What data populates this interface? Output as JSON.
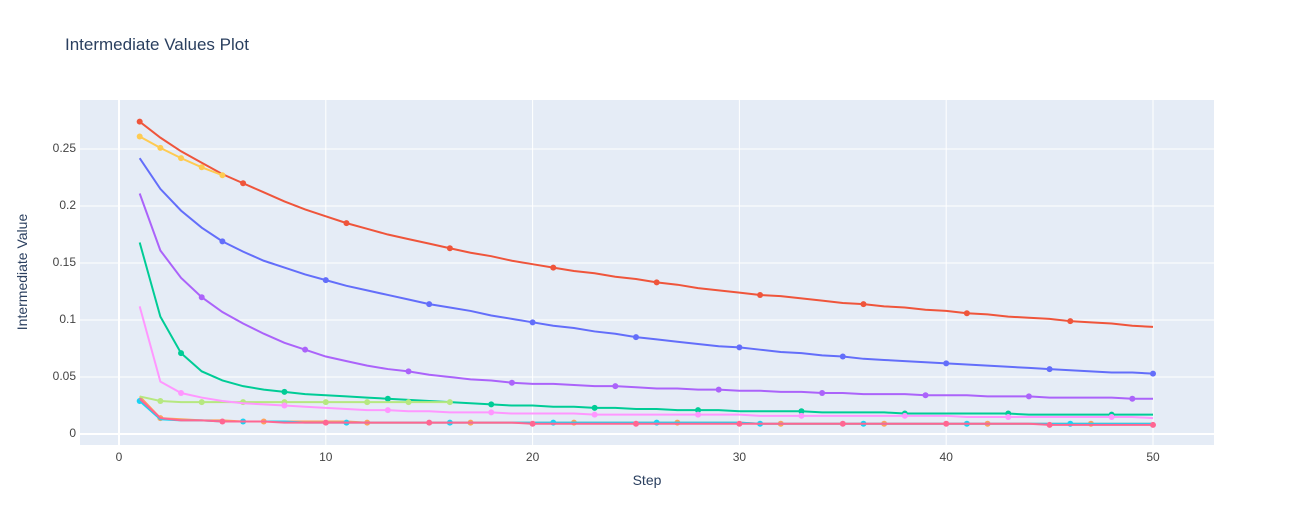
{
  "chart_data": {
    "type": "line",
    "title": "Intermediate Values Plot",
    "x_label": "Step",
    "y_label": "Intermediate Value",
    "xlim": [
      -1.886,
      52.95
    ],
    "ylim": [
      -0.0096,
      0.293
    ],
    "xticks": [
      0,
      10,
      20,
      30,
      40,
      50
    ],
    "yticks": [
      0,
      0.05,
      0.1,
      0.15,
      0.2,
      0.25
    ],
    "grid": true,
    "series": [
      {
        "color": "#EF553B",
        "x": [
          1,
          2,
          3,
          4,
          5,
          6,
          7,
          8,
          9,
          10,
          11,
          12,
          13,
          14,
          15,
          16,
          17,
          18,
          19,
          20,
          21,
          22,
          23,
          24,
          25,
          26,
          27,
          28,
          29,
          30,
          31,
          32,
          33,
          34,
          35,
          36,
          37,
          38,
          39,
          40,
          41,
          42,
          43,
          44,
          45,
          46,
          47,
          48,
          49,
          50
        ],
        "values": [
          0.274,
          0.26,
          0.248,
          0.238,
          0.228,
          0.22,
          0.212,
          0.204,
          0.197,
          0.191,
          0.185,
          0.18,
          0.175,
          0.171,
          0.167,
          0.163,
          0.159,
          0.156,
          0.152,
          0.149,
          0.146,
          0.143,
          0.141,
          0.138,
          0.136,
          0.133,
          0.131,
          0.128,
          0.126,
          0.124,
          0.122,
          0.121,
          0.119,
          0.117,
          0.115,
          0.114,
          0.112,
          0.111,
          0.109,
          0.108,
          0.106,
          0.105,
          0.103,
          0.102,
          0.101,
          0.099,
          0.098,
          0.097,
          0.095,
          0.094
        ]
      },
      {
        "color": "#636EFA",
        "x": [
          1,
          2,
          3,
          4,
          5,
          6,
          7,
          8,
          9,
          10,
          11,
          12,
          13,
          14,
          15,
          16,
          17,
          18,
          19,
          20,
          21,
          22,
          23,
          24,
          25,
          26,
          27,
          28,
          29,
          30,
          31,
          32,
          33,
          34,
          35,
          36,
          37,
          38,
          39,
          40,
          41,
          42,
          43,
          44,
          45,
          46,
          47,
          48,
          49,
          50
        ],
        "values": [
          0.242,
          0.215,
          0.196,
          0.181,
          0.169,
          0.16,
          0.152,
          0.146,
          0.14,
          0.135,
          0.13,
          0.126,
          0.122,
          0.118,
          0.114,
          0.111,
          0.108,
          0.104,
          0.101,
          0.098,
          0.095,
          0.093,
          0.09,
          0.088,
          0.085,
          0.083,
          0.081,
          0.079,
          0.077,
          0.076,
          0.074,
          0.072,
          0.071,
          0.069,
          0.068,
          0.066,
          0.065,
          0.064,
          0.063,
          0.062,
          0.061,
          0.06,
          0.059,
          0.058,
          0.057,
          0.056,
          0.055,
          0.054,
          0.054,
          0.053
        ]
      },
      {
        "color": "#AB63FA",
        "x": [
          1,
          2,
          3,
          4,
          5,
          6,
          7,
          8,
          9,
          10,
          11,
          12,
          13,
          14,
          15,
          16,
          17,
          18,
          19,
          20,
          21,
          22,
          23,
          24,
          25,
          26,
          27,
          28,
          29,
          30,
          31,
          32,
          33,
          34,
          35,
          36,
          37,
          38,
          39,
          40,
          41,
          42,
          43,
          44,
          45,
          46,
          47,
          48,
          49,
          50
        ],
        "values": [
          0.211,
          0.161,
          0.137,
          0.12,
          0.107,
          0.097,
          0.088,
          0.08,
          0.074,
          0.068,
          0.064,
          0.06,
          0.057,
          0.055,
          0.052,
          0.05,
          0.048,
          0.047,
          0.045,
          0.044,
          0.044,
          0.043,
          0.042,
          0.042,
          0.041,
          0.04,
          0.04,
          0.039,
          0.039,
          0.038,
          0.038,
          0.037,
          0.037,
          0.036,
          0.036,
          0.035,
          0.035,
          0.035,
          0.034,
          0.034,
          0.034,
          0.033,
          0.033,
          0.033,
          0.032,
          0.032,
          0.032,
          0.032,
          0.031,
          0.031
        ]
      },
      {
        "color": "#00CC96",
        "x": [
          1,
          2,
          3,
          4,
          5,
          6,
          7,
          8,
          9,
          10,
          11,
          12,
          13,
          14,
          15,
          16,
          17,
          18,
          19,
          20,
          21,
          22,
          23,
          24,
          25,
          26,
          27,
          28,
          29,
          30,
          31,
          32,
          33,
          34,
          35,
          36,
          37,
          38,
          39,
          40,
          41,
          42,
          43,
          44,
          45,
          46,
          47,
          48,
          49,
          50
        ],
        "values": [
          0.168,
          0.103,
          0.071,
          0.055,
          0.047,
          0.042,
          0.039,
          0.037,
          0.035,
          0.034,
          0.033,
          0.032,
          0.031,
          0.03,
          0.029,
          0.028,
          0.027,
          0.026,
          0.025,
          0.025,
          0.024,
          0.024,
          0.023,
          0.023,
          0.022,
          0.022,
          0.021,
          0.021,
          0.021,
          0.02,
          0.02,
          0.02,
          0.02,
          0.019,
          0.019,
          0.019,
          0.019,
          0.018,
          0.018,
          0.018,
          0.018,
          0.018,
          0.018,
          0.017,
          0.017,
          0.017,
          0.017,
          0.017,
          0.017,
          0.017
        ]
      },
      {
        "color": "#FFA15A",
        "x": [
          1,
          2,
          3,
          4,
          5,
          6,
          7,
          8,
          9,
          10,
          11,
          12,
          13,
          14,
          15,
          16,
          17,
          18,
          19,
          20,
          21,
          22,
          23,
          24,
          25,
          26,
          27,
          28,
          29,
          30,
          31,
          32,
          33,
          34,
          35,
          36,
          37,
          38,
          39,
          40,
          41,
          42,
          43,
          44,
          45,
          46,
          47,
          48,
          49,
          50
        ],
        "values": [
          0.033,
          0.014,
          0.013,
          0.012,
          0.012,
          0.011,
          0.011,
          0.011,
          0.011,
          0.011,
          0.011,
          0.01,
          0.01,
          0.01,
          0.01,
          0.01,
          0.01,
          0.01,
          0.01,
          0.01,
          0.01,
          0.01,
          0.01,
          0.01,
          0.01,
          0.01,
          0.01,
          0.01,
          0.01,
          0.01,
          0.009,
          0.009,
          0.009,
          0.009,
          0.009,
          0.009,
          0.009,
          0.009,
          0.009,
          0.009,
          0.009,
          0.009,
          0.009,
          0.009,
          0.009,
          0.009,
          0.009,
          0.009,
          0.009,
          0.009
        ]
      },
      {
        "color": "#19D3F3",
        "x": [
          1,
          2,
          3,
          4,
          5,
          6,
          7,
          8,
          9,
          10,
          11,
          12,
          13,
          14,
          15,
          16,
          17,
          18,
          19,
          20,
          21,
          22,
          23,
          24,
          25,
          26,
          27,
          28,
          29,
          30,
          31,
          32,
          33,
          34,
          35,
          36,
          37,
          38,
          39,
          40,
          41,
          42,
          43,
          44,
          45,
          46,
          47,
          48,
          49,
          50
        ],
        "values": [
          0.029,
          0.013,
          0.012,
          0.012,
          0.011,
          0.011,
          0.011,
          0.011,
          0.01,
          0.01,
          0.01,
          0.01,
          0.01,
          0.01,
          0.01,
          0.01,
          0.01,
          0.01,
          0.01,
          0.01,
          0.01,
          0.01,
          0.01,
          0.01,
          0.01,
          0.01,
          0.01,
          0.01,
          0.01,
          0.01,
          0.009,
          0.009,
          0.009,
          0.009,
          0.009,
          0.009,
          0.009,
          0.009,
          0.009,
          0.009,
          0.009,
          0.009,
          0.009,
          0.009,
          0.009,
          0.009,
          0.009,
          0.009,
          0.009,
          0.009
        ]
      },
      {
        "color": "#FF6692",
        "x": [
          1,
          2,
          3,
          4,
          5,
          6,
          7,
          8,
          9,
          10,
          11,
          12,
          13,
          14,
          15,
          16,
          17,
          18,
          19,
          20,
          21,
          22,
          23,
          24,
          25,
          26,
          27,
          28,
          29,
          30,
          31,
          32,
          33,
          34,
          35,
          36,
          37,
          38,
          39,
          40,
          41,
          42,
          43,
          44,
          45,
          46,
          47,
          48,
          49,
          50
        ],
        "values": [
          0.031,
          0.014,
          0.012,
          0.012,
          0.011,
          0.011,
          0.011,
          0.01,
          0.01,
          0.01,
          0.01,
          0.01,
          0.01,
          0.01,
          0.01,
          0.01,
          0.01,
          0.01,
          0.01,
          0.009,
          0.009,
          0.009,
          0.009,
          0.009,
          0.009,
          0.009,
          0.009,
          0.009,
          0.009,
          0.009,
          0.009,
          0.009,
          0.009,
          0.009,
          0.009,
          0.009,
          0.009,
          0.009,
          0.009,
          0.009,
          0.009,
          0.009,
          0.009,
          0.009,
          0.008,
          0.008,
          0.008,
          0.008,
          0.008,
          0.008
        ]
      },
      {
        "color": "#B6E880",
        "x": [
          1,
          2,
          3,
          4,
          5,
          6,
          7,
          8,
          9,
          10,
          11,
          12,
          13,
          14,
          15,
          16
        ],
        "values": [
          0.033,
          0.029,
          0.028,
          0.028,
          0.028,
          0.028,
          0.028,
          0.028,
          0.028,
          0.028,
          0.028,
          0.028,
          0.028,
          0.028,
          0.028,
          0.028
        ]
      },
      {
        "color": "#FF97FF",
        "x": [
          1,
          2,
          3,
          4,
          5,
          6,
          7,
          8,
          9,
          10,
          11,
          12,
          13,
          14,
          15,
          16,
          17,
          18,
          19,
          20,
          21,
          22,
          23,
          24,
          25,
          26,
          27,
          28,
          29,
          30,
          31,
          32,
          33,
          34,
          35,
          36,
          37,
          38,
          39,
          40,
          41,
          42,
          43,
          44,
          45,
          46,
          47,
          48,
          49,
          50
        ],
        "values": [
          0.112,
          0.046,
          0.036,
          0.032,
          0.029,
          0.027,
          0.026,
          0.025,
          0.024,
          0.023,
          0.022,
          0.021,
          0.021,
          0.02,
          0.02,
          0.019,
          0.019,
          0.019,
          0.018,
          0.018,
          0.018,
          0.018,
          0.017,
          0.017,
          0.017,
          0.017,
          0.017,
          0.017,
          0.017,
          0.017,
          0.016,
          0.016,
          0.016,
          0.016,
          0.016,
          0.016,
          0.016,
          0.016,
          0.016,
          0.016,
          0.015,
          0.015,
          0.015,
          0.015,
          0.015,
          0.015,
          0.015,
          0.015,
          0.015,
          0.014
        ]
      },
      {
        "color": "#FECB52",
        "x": [
          1,
          2,
          3,
          4,
          5
        ],
        "values": [
          0.261,
          0.251,
          0.242,
          0.234,
          0.227
        ]
      }
    ]
  }
}
